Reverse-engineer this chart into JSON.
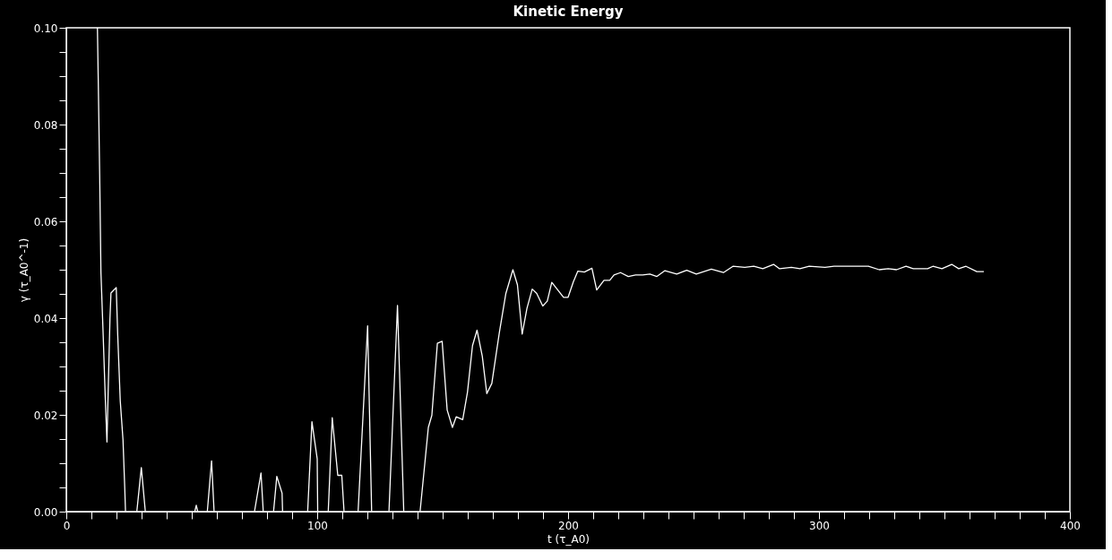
{
  "chart_data": {
    "type": "line",
    "title": "Kinetic Energy",
    "xlabel": "t (τ_A0)",
    "ylabel": "γ (τ_A0^-1)",
    "xlim": [
      0,
      400
    ],
    "ylim": [
      0,
      0.1
    ],
    "xticks": [
      0,
      {
        "value": 10,
        "label": null
      },
      {
        "value": 20,
        "label": null
      },
      {
        "value": 30,
        "label": null
      },
      {
        "value": 40,
        "label": null
      },
      {
        "value": 50,
        "label": null
      },
      {
        "value": 60,
        "label": null
      },
      {
        "value": 70,
        "label": null
      },
      {
        "value": 80,
        "label": null
      },
      {
        "value": 90,
        "label": null
      },
      100,
      {
        "value": 110,
        "label": null
      },
      {
        "value": 120,
        "label": null
      },
      {
        "value": 130,
        "label": null
      },
      {
        "value": 140,
        "label": null
      },
      {
        "value": 150,
        "label": null
      },
      {
        "value": 160,
        "label": null
      },
      {
        "value": 170,
        "label": null
      },
      {
        "value": 180,
        "label": null
      },
      {
        "value": 190,
        "label": null
      },
      200,
      {
        "value": 210,
        "label": null
      },
      {
        "value": 220,
        "label": null
      },
      {
        "value": 230,
        "label": null
      },
      {
        "value": 240,
        "label": null
      },
      {
        "value": 250,
        "label": null
      },
      {
        "value": 260,
        "label": null
      },
      {
        "value": 270,
        "label": null
      },
      {
        "value": 280,
        "label": null
      },
      {
        "value": 290,
        "label": null
      },
      300,
      {
        "value": 310,
        "label": null
      },
      {
        "value": 320,
        "label": null
      },
      {
        "value": 330,
        "label": null
      },
      {
        "value": 340,
        "label": null
      },
      {
        "value": 350,
        "label": null
      },
      {
        "value": 360,
        "label": null
      },
      {
        "value": 370,
        "label": null
      },
      {
        "value": 380,
        "label": null
      },
      {
        "value": 390,
        "label": null
      },
      400
    ],
    "yticks": [
      {
        "value": 0,
        "label": "0.00"
      },
      {
        "value": 0.005,
        "label": null
      },
      {
        "value": 0.01,
        "label": null
      },
      {
        "value": 0.015,
        "label": null
      },
      {
        "value": 0.02,
        "label": "0.02"
      },
      {
        "value": 0.025,
        "label": null
      },
      {
        "value": 0.03,
        "label": null
      },
      {
        "value": 0.035,
        "label": null
      },
      {
        "value": 0.04,
        "label": "0.04"
      },
      {
        "value": 0.045,
        "label": null
      },
      {
        "value": 0.05,
        "label": null
      },
      {
        "value": 0.055,
        "label": null
      },
      {
        "value": 0.06,
        "label": "0.06"
      },
      {
        "value": 0.065,
        "label": null
      },
      {
        "value": 0.07,
        "label": null
      },
      {
        "value": 0.075,
        "label": null
      },
      {
        "value": 0.08,
        "label": "0.08"
      },
      {
        "value": 0.085,
        "label": null
      },
      {
        "value": 0.09,
        "label": null
      },
      {
        "value": 0.095,
        "label": null
      },
      {
        "value": 0.1,
        "label": "0.10"
      }
    ],
    "grid": false,
    "marker": "none",
    "line_style": "solid",
    "series": [
      {
        "color": "#ffffff",
        "x": [
          12.4,
          12.7,
          13.3,
          13.8,
          14.7,
          15.5,
          16.2,
          17.4,
          17.8,
          19.9,
          20.5,
          21.5,
          22.6,
          23.3,
          23.6,
          26,
          28.1,
          29.9,
          31.5,
          40,
          51.2,
          51.8,
          52.4,
          54,
          56.2,
          57.9,
          58.9,
          67,
          75.0,
          77.6,
          78.5,
          80,
          82.6,
          83.9,
          86.0,
          86.2,
          90,
          96.2,
          97.9,
          100,
          100.2,
          102,
          104.4,
          106,
          108.2,
          109.8,
          110.7,
          113,
          116.3,
          120.1,
          121.7,
          125,
          128.6,
          132.0,
          134.5,
          138,
          141,
          144.3,
          145.7,
          147.9,
          149.8,
          151.8,
          153.9,
          155.4,
          158.0,
          159.9,
          161.9,
          163.7,
          165.8,
          167.6,
          169.6,
          172.6,
          175.2,
          178.0,
          179.8,
          181.7,
          183.6,
          185.7,
          187.5,
          189.9,
          191.7,
          193.5,
          195.6,
          198.2,
          200,
          202.1,
          203.9,
          206.5,
          209.5,
          211.4,
          214.3,
          216.6,
          218.3,
          220.9,
          224,
          226.9,
          229.7,
          232.6,
          235.4,
          238.6,
          243.3,
          247.3,
          251.1,
          257.1,
          261.9,
          265.7,
          270.4,
          274,
          277.6,
          281.9,
          284.3,
          289,
          292.4,
          296.1,
          302.4,
          306,
          313.9,
          319.7,
          324,
          327.6,
          330.9,
          334.7,
          337.6,
          343.3,
          345.4,
          349,
          352.9,
          355.7,
          358.6,
          362.9,
          365.7
        ],
        "values": [
          0.1,
          0.0903,
          0.0697,
          0.0495,
          0.0364,
          0.024,
          0.0144,
          0.0399,
          0.0452,
          0.0463,
          0.0364,
          0.0229,
          0.0148,
          0.0048,
          0,
          null,
          0,
          0.0091,
          0,
          null,
          0,
          0.0013,
          0,
          null,
          0,
          0.0105,
          0,
          null,
          0,
          0.008,
          0,
          null,
          0,
          0.0073,
          0.0038,
          0,
          null,
          0,
          0.0186,
          0.0109,
          0,
          null,
          0,
          0.0194,
          0.0075,
          0.0075,
          0,
          null,
          0,
          0.0384,
          0,
          null,
          0,
          0.0426,
          0,
          null,
          0,
          0.0174,
          0.0199,
          0.0348,
          0.0352,
          0.021,
          0.0174,
          0.0196,
          0.019,
          0.0247,
          0.0343,
          0.0375,
          0.0321,
          0.0244,
          0.0265,
          0.037,
          0.0451,
          0.05,
          0.0469,
          0.0367,
          0.042,
          0.046,
          0.0451,
          0.0425,
          0.0435,
          0.0474,
          0.046,
          0.0443,
          0.0443,
          0.0475,
          0.0497,
          0.0495,
          0.0503,
          0.0458,
          0.0478,
          0.0478,
          0.0489,
          0.0494,
          0.0486,
          0.0489,
          0.0489,
          0.0491,
          0.0486,
          0.0498,
          0.0491,
          0.0499,
          0.0491,
          0.0501,
          0.0494,
          0.0507,
          0.0505,
          0.0507,
          0.0502,
          0.0511,
          0.0502,
          0.0505,
          0.0502,
          0.0507,
          0.0505,
          0.0507,
          0.0507,
          0.0507,
          0.05,
          0.0502,
          0.05,
          0.0507,
          0.0502,
          0.0502,
          0.0507,
          0.0502,
          0.0511,
          0.0502,
          0.0507,
          0.0496,
          0.0496
        ]
      }
    ]
  }
}
